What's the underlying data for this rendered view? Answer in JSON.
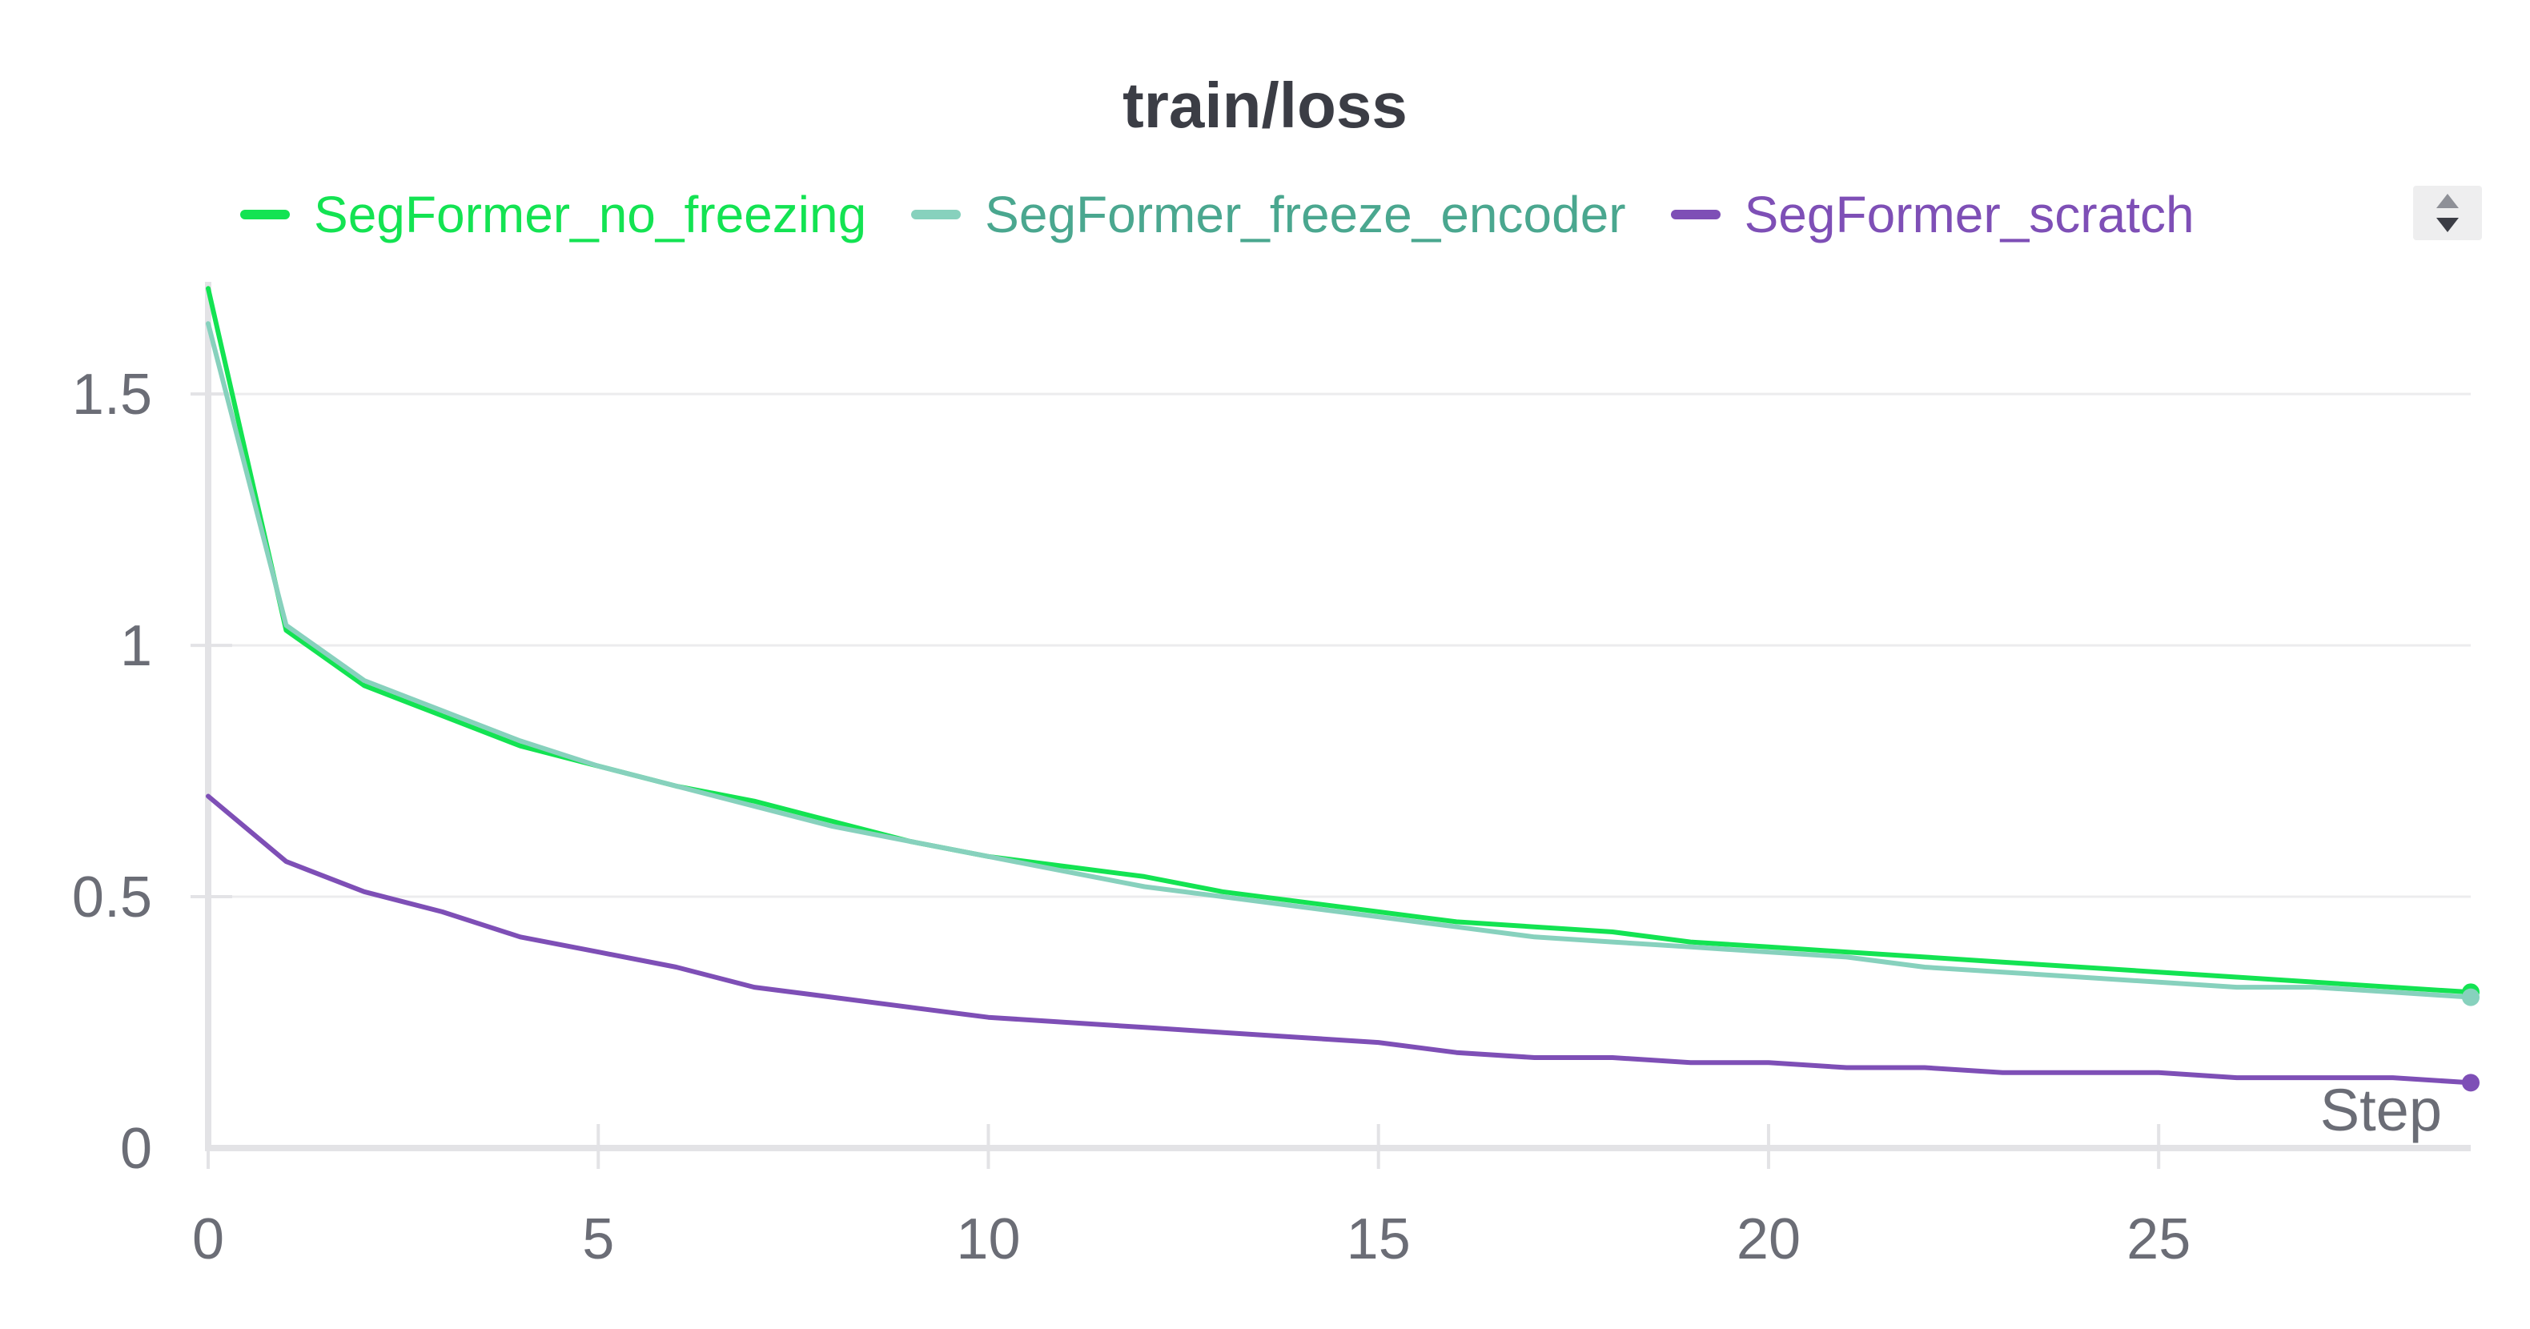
{
  "chart_data": {
    "type": "line",
    "title": "train/loss",
    "xlabel": "Step",
    "ylabel": "",
    "xlim": [
      0,
      29
    ],
    "ylim": [
      0,
      1.72
    ],
    "x_ticks": [
      0,
      5,
      10,
      15,
      20,
      25
    ],
    "y_ticks": [
      0,
      0.5,
      1,
      1.5
    ],
    "x_tick_labels": [
      "0",
      "5",
      "10",
      "15",
      "20",
      "25"
    ],
    "y_tick_labels": [
      "0",
      "0.5",
      "1",
      "1.5"
    ],
    "grid": true,
    "legend_position": "top",
    "x": [
      0,
      1,
      2,
      3,
      4,
      5,
      6,
      7,
      8,
      9,
      10,
      11,
      12,
      13,
      14,
      15,
      16,
      17,
      18,
      19,
      20,
      21,
      22,
      23,
      24,
      25,
      26,
      27,
      28,
      29
    ],
    "series": [
      {
        "name": "SegFormer_no_freezing",
        "color": "#13e352",
        "values": [
          1.71,
          1.03,
          0.92,
          0.86,
          0.8,
          0.76,
          0.72,
          0.69,
          0.65,
          0.61,
          0.58,
          0.56,
          0.54,
          0.51,
          0.49,
          0.47,
          0.45,
          0.44,
          0.43,
          0.41,
          0.4,
          0.39,
          0.38,
          0.37,
          0.36,
          0.35,
          0.34,
          0.33,
          0.32,
          0.31
        ]
      },
      {
        "name": "SegFormer_freeze_encoder",
        "color": "#87d1bd",
        "values": [
          1.64,
          1.04,
          0.93,
          0.87,
          0.81,
          0.76,
          0.72,
          0.68,
          0.64,
          0.61,
          0.58,
          0.55,
          0.52,
          0.5,
          0.48,
          0.46,
          0.44,
          0.42,
          0.41,
          0.4,
          0.39,
          0.38,
          0.36,
          0.35,
          0.34,
          0.33,
          0.32,
          0.32,
          0.31,
          0.3
        ]
      },
      {
        "name": "SegFormer_scratch",
        "color": "#7e4fb6",
        "values": [
          0.7,
          0.57,
          0.51,
          0.47,
          0.42,
          0.39,
          0.36,
          0.32,
          0.3,
          0.28,
          0.26,
          0.25,
          0.24,
          0.23,
          0.22,
          0.21,
          0.19,
          0.18,
          0.18,
          0.17,
          0.17,
          0.16,
          0.16,
          0.15,
          0.15,
          0.15,
          0.14,
          0.14,
          0.14,
          0.13
        ]
      }
    ],
    "legend_text_colors": [
      "#13e352",
      "#4aa78f",
      "#7e4fb6"
    ],
    "axis_color": "#e3e3e6",
    "grid_color": "#ececee"
  }
}
